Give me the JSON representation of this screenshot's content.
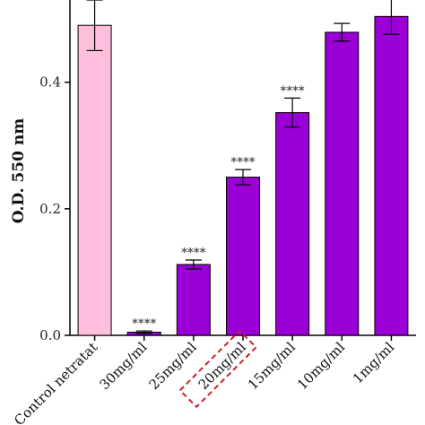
{
  "chart_data": {
    "type": "bar",
    "ylabel": "O.D. 550 nm",
    "xlabel": "",
    "ylim": [
      0,
      0.53
    ],
    "yticks": [
      "0.0",
      "0.2",
      "0.4"
    ],
    "yticks_values": [
      0.0,
      0.2,
      0.4
    ],
    "categories": [
      "Control netratat",
      "30mg/ml",
      "25mg/ml",
      "20mg/ml",
      "15mg/ml",
      "10mg/ml",
      "1mg/ml"
    ],
    "values": [
      0.49,
      0.005,
      0.112,
      0.25,
      0.352,
      0.479,
      0.504
    ],
    "errors": [
      0.04,
      0.002,
      0.007,
      0.012,
      0.023,
      0.014,
      0.028
    ],
    "significance": [
      "",
      "****",
      "****",
      "****",
      "****",
      "",
      ""
    ],
    "bar_colors": [
      "#ffbfdc",
      "#9a00d6",
      "#9a00d6",
      "#9a00d6",
      "#9a00d6",
      "#9a00d6",
      "#9a00d6"
    ],
    "highlighted_category": "20mg/ml",
    "highlight_color": "#cc1f2a",
    "grid": false,
    "legend": "none"
  }
}
